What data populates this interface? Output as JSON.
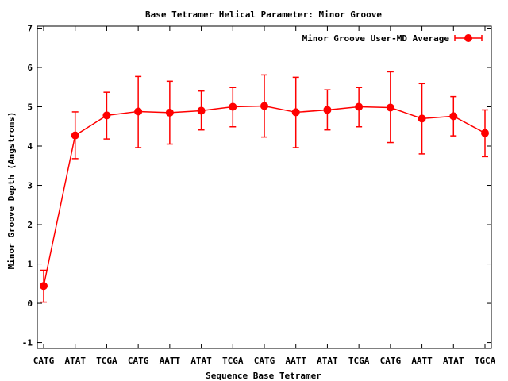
{
  "chart_data": {
    "type": "line",
    "title": "Base Tetramer Helical Parameter: Minor Groove",
    "xlabel": "Sequence Base Tetramer",
    "ylabel": "Minor Groove Depth (Angstroms)",
    "categories": [
      "CATG",
      "ATAT",
      "TCGA",
      "CATG",
      "AATT",
      "ATAT",
      "TCGA",
      "CATG",
      "AATT",
      "ATAT",
      "TCGA",
      "CATG",
      "AATT",
      "ATAT",
      "TGCA"
    ],
    "ylim": [
      -1.15,
      7.05
    ],
    "yticks": [
      -1,
      0,
      1,
      2,
      3,
      4,
      5,
      6,
      7
    ],
    "ytick_labels": [
      "-1",
      "0",
      "1",
      "2",
      "3",
      "4",
      "5",
      "6",
      "7"
    ],
    "grid": false,
    "legend_position": "top-right",
    "series": [
      {
        "name": "Minor Groove User-MD Average",
        "color": "#ff0000",
        "marker": "circle",
        "values": [
          0.44,
          4.27,
          4.78,
          4.88,
          4.85,
          4.9,
          5.0,
          5.02,
          4.86,
          4.92,
          5.0,
          4.98,
          4.7,
          4.76,
          4.33
        ],
        "error_low": [
          0.03,
          3.68,
          4.18,
          3.96,
          4.05,
          4.41,
          4.49,
          4.23,
          3.96,
          4.41,
          4.49,
          4.09,
          3.8,
          4.26,
          3.73
        ],
        "error_high": [
          0.84,
          4.87,
          5.37,
          5.77,
          5.65,
          5.4,
          5.49,
          5.81,
          5.75,
          5.43,
          5.49,
          5.89,
          5.59,
          5.26,
          4.92
        ]
      }
    ]
  }
}
